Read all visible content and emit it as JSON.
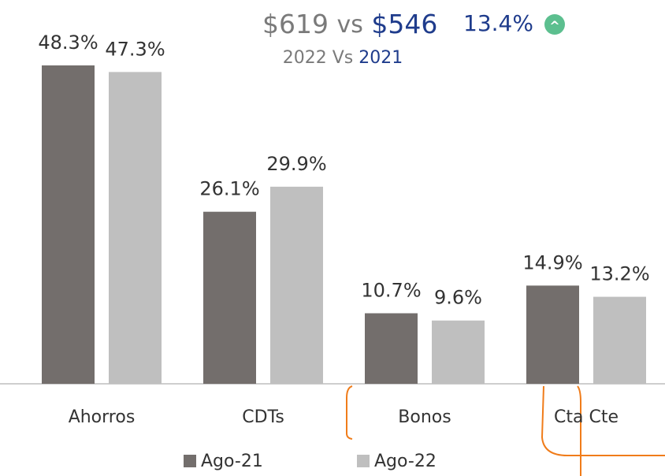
{
  "chart_data": {
    "type": "bar",
    "header": {
      "current": "$619",
      "connector": "vs",
      "previous": "$546",
      "change": "13.4%",
      "change_icon": "^",
      "current_year": "2022",
      "year_connector": "Vs",
      "previous_year": "2021"
    },
    "categories": [
      "Ahorros",
      "CDTs",
      "Bonos",
      "Cta Cte"
    ],
    "series": [
      {
        "name": "Ago-21",
        "color": "#736e6c",
        "values": [
          48.3,
          26.1,
          10.7,
          14.9
        ],
        "value_labels": [
          "48.3%",
          "26.1%",
          "10.7%",
          "14.9%"
        ]
      },
      {
        "name": "Ago-22",
        "color": "#bfbfbf",
        "values": [
          47.3,
          29.9,
          9.6,
          13.2
        ],
        "value_labels": [
          "47.3%",
          "29.9%",
          "9.6%",
          "13.2%"
        ]
      }
    ],
    "legend": "bottom"
  }
}
